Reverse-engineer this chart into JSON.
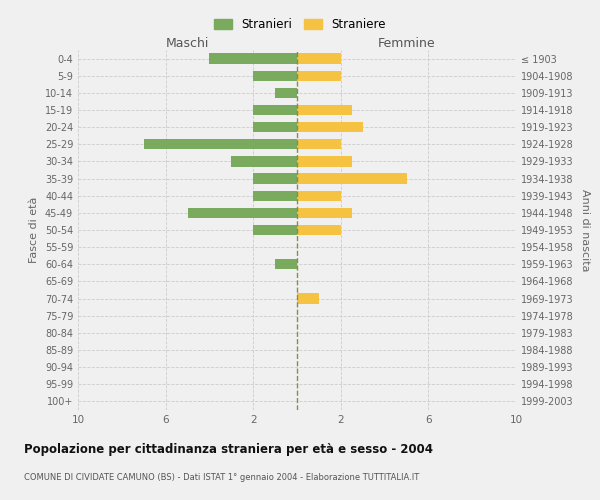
{
  "age_groups": [
    "0-4",
    "5-9",
    "10-14",
    "15-19",
    "20-24",
    "25-29",
    "30-34",
    "35-39",
    "40-44",
    "45-49",
    "50-54",
    "55-59",
    "60-64",
    "65-69",
    "70-74",
    "75-79",
    "80-84",
    "85-89",
    "90-94",
    "95-99",
    "100+"
  ],
  "birth_years": [
    "1999-2003",
    "1994-1998",
    "1989-1993",
    "1984-1988",
    "1979-1983",
    "1974-1978",
    "1969-1973",
    "1964-1968",
    "1959-1963",
    "1954-1958",
    "1949-1953",
    "1944-1948",
    "1939-1943",
    "1934-1938",
    "1929-1933",
    "1924-1928",
    "1919-1923",
    "1914-1918",
    "1909-1913",
    "1904-1908",
    "≤ 1903"
  ],
  "males": [
    4,
    2,
    1,
    2,
    2,
    7,
    3,
    2,
    2,
    5,
    2,
    0,
    1,
    0,
    0,
    0,
    0,
    0,
    0,
    0,
    0
  ],
  "females": [
    2,
    2,
    0,
    2.5,
    3,
    2,
    2.5,
    5,
    2,
    2.5,
    2,
    0,
    0,
    0,
    1,
    0,
    0,
    0,
    0,
    0,
    0
  ],
  "male_color": "#7aaa5e",
  "female_color": "#f5c242",
  "grid_color": "#cccccc",
  "center_line_color": "#8b8b4e",
  "xlim": 10,
  "xtick_positions": [
    -10,
    -6,
    -2,
    2,
    6,
    10
  ],
  "xtick_labels": [
    "10",
    "6",
    "2",
    "2",
    "6",
    "10"
  ],
  "title": "Popolazione per cittadinanza straniera per età e sesso - 2004",
  "subtitle": "COMUNE DI CIVIDATE CAMUNO (BS) - Dati ISTAT 1° gennaio 2004 - Elaborazione TUTTITALIA.IT",
  "ylabel_left": "Fasce di età",
  "ylabel_right": "Anni di nascita",
  "legend_stranieri": "Stranieri",
  "legend_straniere": "Straniere",
  "maschi_label": "Maschi",
  "femmine_label": "Femmine",
  "bg_color": "#f0f0f0"
}
